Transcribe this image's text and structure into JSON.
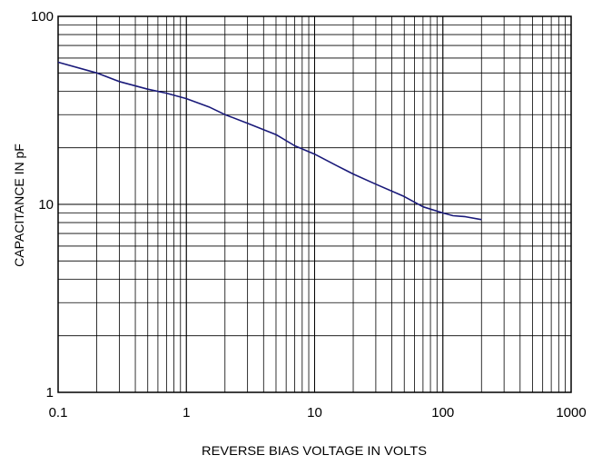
{
  "chart_data": {
    "type": "line",
    "title": "",
    "xlabel": "REVERSE BIAS VOLTAGE IN VOLTS",
    "ylabel": "CAPACITANCE IN pF",
    "xscale": "log",
    "yscale": "log",
    "xlim": [
      0.1,
      1000
    ],
    "ylim": [
      1,
      100
    ],
    "grid": true,
    "legend": "none",
    "x_ticks": [
      "0.1",
      "1",
      "10",
      "100",
      "1000"
    ],
    "y_ticks": [
      "1",
      "10",
      "100"
    ],
    "series": [
      {
        "color": "#1a1a7a",
        "points": [
          [
            0.1,
            57
          ],
          [
            0.2,
            50
          ],
          [
            0.3,
            45
          ],
          [
            0.5,
            41
          ],
          [
            0.7,
            39
          ],
          [
            1,
            36.5
          ],
          [
            1.5,
            33
          ],
          [
            2,
            30
          ],
          [
            3,
            27
          ],
          [
            5,
            23.5
          ],
          [
            7,
            20.5
          ],
          [
            10,
            18.5
          ],
          [
            15,
            16
          ],
          [
            20,
            14.5
          ],
          [
            30,
            12.8
          ],
          [
            50,
            11
          ],
          [
            70,
            9.7
          ],
          [
            100,
            9.0
          ],
          [
            120,
            8.7
          ],
          [
            150,
            8.6
          ],
          [
            200,
            8.3
          ]
        ]
      }
    ]
  }
}
